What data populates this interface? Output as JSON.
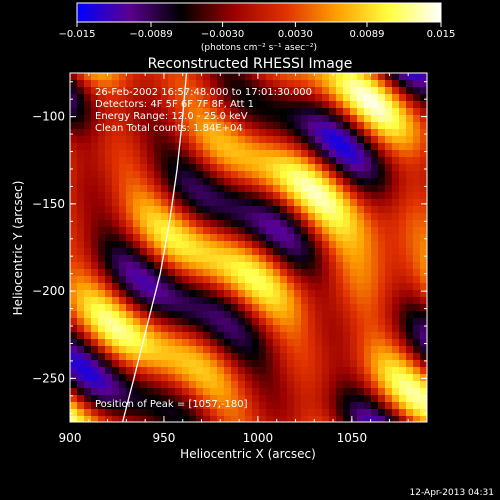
{
  "chart_data": {
    "type": "heatmap",
    "title": "Reconstructed RHESSI Image",
    "xlabel": "Heliocentric X (arcsec)",
    "ylabel": "Heliocentric Y (arcsec)",
    "xlim": [
      900,
      1090
    ],
    "ylim": [
      -275,
      -75
    ],
    "x_ticks": [
      900,
      950,
      1000,
      1050
    ],
    "x_tick_labels": [
      "900",
      "950",
      "1000",
      "1050"
    ],
    "y_ticks": [
      -250,
      -200,
      -150,
      -100
    ],
    "y_tick_labels": [
      "−250",
      "−200",
      "−150",
      "−100"
    ],
    "colorbar": {
      "range": [
        -0.015,
        0.015
      ],
      "ticks": [
        -0.015,
        -0.0089,
        -0.003,
        0.003,
        0.0089,
        0.015
      ],
      "tick_labels": [
        "−0.015",
        "−0.0089",
        "−0.0030",
        "0.0030",
        "0.0089",
        "0.015"
      ],
      "label": "(photons cm⁻² s⁻¹ asec⁻²)",
      "colormap": [
        "#0000ff",
        "#5a0090",
        "#000000",
        "#9a0000",
        "#e03000",
        "#ffa000",
        "#ffff40",
        "#ffffff"
      ]
    },
    "annotations": [
      "26-Feb-2002 16:57:48.000 to 17:01:30.000",
      "Detectors: 4F 5F 6F 7F 8F, Att 1",
      "Energy Range: 12.0 - 25.0 keV",
      "Clean     Total counts: 1.84E+04"
    ],
    "peak_text": "Position of Peak = [1057,-180]",
    "peak": [
      1057,
      -180
    ],
    "limb_curve": [
      [
        928,
        -275
      ],
      [
        934,
        -250
      ],
      [
        941,
        -220
      ],
      [
        948,
        -190
      ],
      [
        953,
        -160
      ],
      [
        957,
        -130
      ],
      [
        960,
        -100
      ],
      [
        962,
        -75
      ]
    ],
    "limb_color": "#ffffff",
    "grid": false,
    "footer": "12-Apr-2013 04:31"
  }
}
